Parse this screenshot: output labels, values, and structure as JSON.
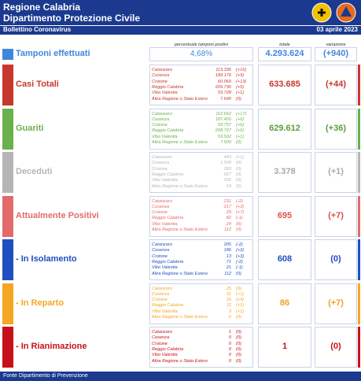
{
  "header": {
    "title": "Regione Calabria",
    "subtitle": "Dipartimento Protezione Civile",
    "bulletin": "Bollettino Coronavirus",
    "date": "03 aprile 2023"
  },
  "columns": {
    "percentage": "percentuale tamponi positivi",
    "total": "totale",
    "change": "variazione"
  },
  "tests": {
    "label": "Tamponi effettuati",
    "percentage": "4,68%",
    "total": "4.293.624",
    "change": "(+940)",
    "color": "#3f86de"
  },
  "sections": [
    {
      "label": "Casi Totali",
      "color": "#c8372d",
      "total_color": "#c8372d",
      "total": "633.685",
      "change": "(+44)",
      "rows": [
        [
          "Catanzaro",
          "113.336",
          "(+16)"
        ],
        [
          "Cosenza",
          "189.176",
          "(+9)"
        ],
        [
          "Crotone",
          "60.069",
          "(+13)"
        ],
        [
          "Reggio Calabria",
          "209.736",
          "(+5)"
        ],
        [
          "Vibo Valentia",
          "53.728",
          "(+1)"
        ],
        [
          "Altra Regione o Stato Estero",
          "7.640",
          "(0)"
        ]
      ]
    },
    {
      "label": "Guariti",
      "color": "#6ab04c",
      "total_color": "#5a9e3c",
      "total": "629.612",
      "change": "(+36)",
      "rows": [
        [
          "Catanzaro",
          "112.662",
          "(+17)"
        ],
        [
          "Cosenza",
          "187.455",
          "(+6)"
        ],
        [
          "Crotone",
          "59.757",
          "(+6)"
        ],
        [
          "Reggio Calabria",
          "208.727",
          "(+6)"
        ],
        [
          "Vibo Valentia",
          "53.502",
          "(+1)"
        ],
        [
          "Altra Regione o Stato Estero",
          "7.509",
          "(0)"
        ]
      ]
    },
    {
      "label": "Deceduti",
      "color": "#b5b5b5",
      "total_color": "#a8a8a8",
      "total": "3.378",
      "change": "(+1)",
      "rows": [
        [
          "Catanzaro",
          "443",
          "(+1)"
        ],
        [
          "Cosenza",
          "1.504",
          "(0)"
        ],
        [
          "Crotone",
          "283",
          "(0)"
        ],
        [
          "Reggio Calabria",
          "927",
          "(0)"
        ],
        [
          "Vibo Valentia",
          "202",
          "(0)"
        ],
        [
          "Altra Regione o Stato Estero",
          "19",
          "(0)"
        ]
      ]
    },
    {
      "label": "Attualmente Positivi",
      "color": "#e26a6a",
      "total_color": "#d9534f",
      "total": "695",
      "change": "(+7)",
      "rows": [
        [
          "Catanzaro",
          "231",
          "(-2)"
        ],
        [
          "Cosenza",
          "217",
          "(+3)"
        ],
        [
          "Crotone",
          "29",
          "(+7)"
        ],
        [
          "Reggio Calabria",
          "82",
          "(-1)"
        ],
        [
          "Vibo Valentia",
          "24",
          "(0)"
        ],
        [
          "Altra Regione o Stato Estero",
          "112",
          "(0)"
        ]
      ]
    },
    {
      "label": "- In Isolamento",
      "color": "#1f4fbf",
      "total_color": "#1f4fbf",
      "total": "608",
      "change": "(0)",
      "rows": [
        [
          "Catanzaro",
          "205",
          "(-2)"
        ],
        [
          "Cosenza",
          "186",
          "(+2)"
        ],
        [
          "Crotone",
          "13",
          "(+3)"
        ],
        [
          "Reggio Calabria",
          "71",
          "(-2)"
        ],
        [
          "Vibo Valentia",
          "21",
          "(-1)"
        ],
        [
          "Altra Regione o Stato Estero",
          "112",
          "(0)"
        ]
      ]
    },
    {
      "label": "- In Reparto",
      "color": "#f5a623",
      "total_color": "#f0a020",
      "total": "86",
      "change": "(+7)",
      "rows": [
        [
          "Catanzaro",
          "25",
          "(0)"
        ],
        [
          "Cosenza",
          "31",
          "(+1)"
        ],
        [
          "Crotone",
          "16",
          "(+4)"
        ],
        [
          "Reggio Calabria",
          "11",
          "(+1)"
        ],
        [
          "Vibo Valentia",
          "3",
          "(+1)"
        ],
        [
          "Altra Regione o Stato Estero",
          "0",
          "(0)"
        ]
      ]
    },
    {
      "label": "- In Rianimazione",
      "color": "#c8101a",
      "total_color": "#c8101a",
      "total": "1",
      "change": "(0)",
      "rows": [
        [
          "Catanzaro",
          "1",
          "(0)"
        ],
        [
          "Cosenza",
          "0",
          "(0)"
        ],
        [
          "Crotone",
          "0",
          "(0)"
        ],
        [
          "Reggio Calabria",
          "0",
          "(0)"
        ],
        [
          "Vibo Valentia",
          "0",
          "(0)"
        ],
        [
          "Altra Regione o Stato Estero",
          "0",
          "(0)"
        ]
      ]
    }
  ],
  "footer": "Fonte Dipartimento di Prevenzione"
}
